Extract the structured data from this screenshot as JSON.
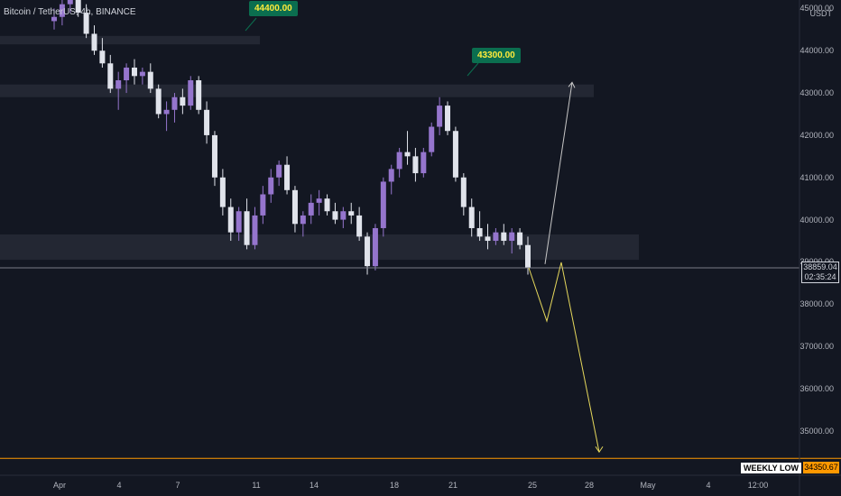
{
  "header": {
    "title": "Bitcoin / TetherUS, 4h, BINANCE"
  },
  "axis": {
    "unit": "USDT"
  },
  "colors": {
    "background": "#131722",
    "up": "#9575cd",
    "down": "#e0e3eb",
    "zone": "#2a2e39",
    "callout": "#0b6e4f",
    "callout_text": "#ffeb3b",
    "projection": "#e6d85c",
    "weekly_low": "#ff9800"
  },
  "price_tag": {
    "price": "38859.04",
    "countdown": "02:35:24"
  },
  "weekly_low": {
    "label": "WEEKLY LOW",
    "price": "34350.67"
  },
  "callouts": [
    {
      "text": "44400.00"
    },
    {
      "text": "43300.00"
    }
  ],
  "chart_data": {
    "type": "candlestick",
    "title": "Bitcoin / TetherUS, 4h, BINANCE",
    "ylim": [
      34300,
      45000
    ],
    "y_ticks": [
      "45000.00",
      "44000.00",
      "43000.00",
      "42000.00",
      "41000.00",
      "40000.00",
      "39000.00",
      "38000.00",
      "37000.00",
      "36000.00",
      "35000.00"
    ],
    "x_ticks": [
      "Apr",
      "4",
      "7",
      "11",
      "14",
      "18",
      "21",
      "25",
      "28",
      "May",
      "4",
      "12:00"
    ],
    "zones": [
      {
        "from": 44150,
        "to": 44350
      },
      {
        "from": 42900,
        "to": 43200
      },
      {
        "from": 39050,
        "to": 39650
      }
    ],
    "series": [
      {
        "values": [
          [
            44700,
            45000,
            44500,
            44800
          ],
          [
            44800,
            45200,
            44600,
            45100
          ],
          [
            45100,
            45400,
            44900,
            45200
          ],
          [
            45200,
            45500,
            44800,
            44900
          ],
          [
            44900,
            45100,
            44300,
            44400
          ],
          [
            44400,
            44600,
            43900,
            44000
          ],
          [
            44000,
            44300,
            43600,
            43700
          ],
          [
            43700,
            43900,
            43000,
            43100
          ],
          [
            43100,
            43500,
            42600,
            43300
          ],
          [
            43300,
            43700,
            43000,
            43600
          ],
          [
            43600,
            43800,
            43200,
            43400
          ],
          [
            43400,
            43600,
            43200,
            43500
          ],
          [
            43500,
            43700,
            43000,
            43100
          ],
          [
            43100,
            43200,
            42400,
            42500
          ],
          [
            42500,
            42800,
            42100,
            42600
          ],
          [
            42600,
            43000,
            42300,
            42900
          ],
          [
            42900,
            43100,
            42500,
            42700
          ],
          [
            42700,
            43400,
            42600,
            43300
          ],
          [
            43300,
            43400,
            42500,
            42600
          ],
          [
            42600,
            42800,
            41800,
            42000
          ],
          [
            42000,
            42100,
            40800,
            41000
          ],
          [
            41000,
            41200,
            40100,
            40300
          ],
          [
            40300,
            40500,
            39500,
            39700
          ],
          [
            39700,
            40300,
            39500,
            40200
          ],
          [
            40200,
            40500,
            39300,
            39400
          ],
          [
            39400,
            40300,
            39300,
            40100
          ],
          [
            40100,
            40800,
            39900,
            40600
          ],
          [
            40600,
            41200,
            40400,
            41000
          ],
          [
            41000,
            41400,
            40800,
            41300
          ],
          [
            41300,
            41500,
            40600,
            40700
          ],
          [
            40700,
            40800,
            39700,
            39900
          ],
          [
            39900,
            40200,
            39600,
            40100
          ],
          [
            40100,
            40600,
            39900,
            40400
          ],
          [
            40400,
            40700,
            40100,
            40500
          ],
          [
            40500,
            40600,
            40100,
            40200
          ],
          [
            40200,
            40400,
            39900,
            40000
          ],
          [
            40000,
            40300,
            39800,
            40200
          ],
          [
            40200,
            40400,
            39900,
            40100
          ],
          [
            40100,
            40300,
            39500,
            39600
          ],
          [
            39600,
            39700,
            38700,
            38900
          ],
          [
            38900,
            39900,
            38800,
            39800
          ],
          [
            39800,
            41000,
            39600,
            40900
          ],
          [
            40900,
            41300,
            40600,
            41200
          ],
          [
            41200,
            41700,
            41000,
            41600
          ],
          [
            41600,
            42100,
            41300,
            41500
          ],
          [
            41500,
            41700,
            40900,
            41100
          ],
          [
            41100,
            41700,
            41000,
            41600
          ],
          [
            41600,
            42300,
            41500,
            42200
          ],
          [
            42200,
            42900,
            42000,
            42700
          ],
          [
            42700,
            42800,
            42000,
            42100
          ],
          [
            42100,
            42200,
            40900,
            41000
          ],
          [
            41000,
            41100,
            40100,
            40300
          ],
          [
            40300,
            40500,
            39600,
            39800
          ],
          [
            39800,
            40200,
            39500,
            39600
          ],
          [
            39600,
            39900,
            39300,
            39500
          ],
          [
            39500,
            39800,
            39400,
            39700
          ],
          [
            39700,
            39900,
            39400,
            39500
          ],
          [
            39500,
            39800,
            39200,
            39700
          ],
          [
            39700,
            39800,
            39300,
            39400
          ],
          [
            39400,
            39600,
            38700,
            38860
          ]
        ]
      }
    ],
    "projections": [
      {
        "name": "bear",
        "points": [
          [
            38860,
            0
          ],
          [
            37600,
            1
          ],
          [
            38990,
            2
          ],
          [
            34500,
            3
          ]
        ]
      },
      {
        "name": "bull",
        "points": [
          [
            38950,
            0
          ],
          [
            43250,
            1
          ]
        ]
      }
    ]
  }
}
